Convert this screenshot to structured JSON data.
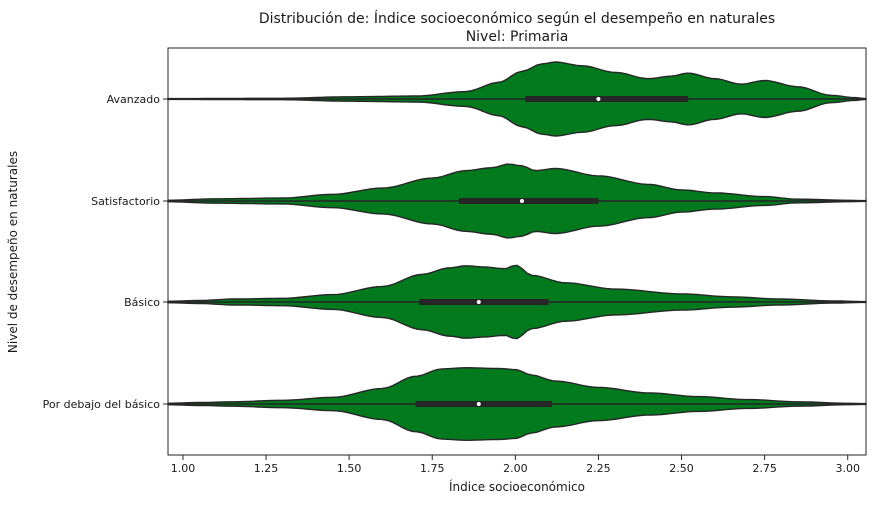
{
  "chart_data": {
    "type": "violin",
    "title": "Distribución de: Índice socioeconómico según el desempeño en naturales",
    "subtitle": "Nivel: Primaria",
    "xlabel": "Índice socioeconómico",
    "ylabel": "Nivel de desempeño en naturales",
    "xlim": [
      0.955,
      3.055
    ],
    "x_ticks": [
      1.0,
      1.25,
      1.5,
      1.75,
      2.0,
      2.25,
      2.5,
      2.75,
      3.0
    ],
    "x_tick_labels": [
      "1.00",
      "1.25",
      "1.50",
      "1.75",
      "2.00",
      "2.25",
      "2.50",
      "2.75",
      "3.00"
    ],
    "grid": false,
    "fill_color": "#007a1c",
    "edge_color": "#262626",
    "categories": [
      "Avanzado",
      "Satisfactorio",
      "Básico",
      "Por debajo del básico"
    ],
    "series": [
      {
        "category": "Avanzado",
        "min": 0.955,
        "q1": 2.03,
        "median": 2.25,
        "q3": 2.52,
        "max": 3.055,
        "density_profile": [
          [
            0.955,
            0.01
          ],
          [
            1.3,
            0.02
          ],
          [
            1.5,
            0.06
          ],
          [
            1.7,
            0.08
          ],
          [
            1.85,
            0.2
          ],
          [
            1.95,
            0.45
          ],
          [
            2.02,
            0.75
          ],
          [
            2.08,
            0.95
          ],
          [
            2.12,
            1.0
          ],
          [
            2.2,
            0.9
          ],
          [
            2.3,
            0.72
          ],
          [
            2.4,
            0.55
          ],
          [
            2.47,
            0.62
          ],
          [
            2.52,
            0.7
          ],
          [
            2.6,
            0.55
          ],
          [
            2.68,
            0.4
          ],
          [
            2.75,
            0.5
          ],
          [
            2.85,
            0.33
          ],
          [
            2.95,
            0.1
          ],
          [
            3.02,
            0.04
          ],
          [
            3.055,
            0.01
          ]
        ]
      },
      {
        "category": "Satisfactorio",
        "min": 0.955,
        "q1": 1.83,
        "median": 2.02,
        "q3": 2.25,
        "max": 3.055,
        "density_profile": [
          [
            0.955,
            0.02
          ],
          [
            1.1,
            0.06
          ],
          [
            1.3,
            0.08
          ],
          [
            1.45,
            0.18
          ],
          [
            1.6,
            0.35
          ],
          [
            1.75,
            0.62
          ],
          [
            1.85,
            0.82
          ],
          [
            1.93,
            0.9
          ],
          [
            1.98,
            1.0
          ],
          [
            2.02,
            0.95
          ],
          [
            2.06,
            0.82
          ],
          [
            2.12,
            0.88
          ],
          [
            2.25,
            0.68
          ],
          [
            2.4,
            0.45
          ],
          [
            2.5,
            0.3
          ],
          [
            2.6,
            0.22
          ],
          [
            2.75,
            0.12
          ],
          [
            2.85,
            0.05
          ],
          [
            3.0,
            0.02
          ],
          [
            3.055,
            0.01
          ]
        ]
      },
      {
        "category": "Básico",
        "min": 0.955,
        "q1": 1.71,
        "median": 1.89,
        "q3": 2.1,
        "max": 3.055,
        "density_profile": [
          [
            0.955,
            0.02
          ],
          [
            1.05,
            0.04
          ],
          [
            1.15,
            0.08
          ],
          [
            1.3,
            0.1
          ],
          [
            1.45,
            0.2
          ],
          [
            1.6,
            0.42
          ],
          [
            1.72,
            0.75
          ],
          [
            1.8,
            0.92
          ],
          [
            1.85,
            0.98
          ],
          [
            1.9,
            0.95
          ],
          [
            1.97,
            0.9
          ],
          [
            2.0,
            1.0
          ],
          [
            2.05,
            0.72
          ],
          [
            2.15,
            0.52
          ],
          [
            2.3,
            0.35
          ],
          [
            2.5,
            0.22
          ],
          [
            2.65,
            0.14
          ],
          [
            2.8,
            0.08
          ],
          [
            2.95,
            0.03
          ],
          [
            3.055,
            0.01
          ]
        ]
      },
      {
        "category": "Por debajo del básico",
        "min": 0.955,
        "q1": 1.7,
        "median": 1.89,
        "q3": 2.11,
        "max": 3.055,
        "density_profile": [
          [
            0.955,
            0.02
          ],
          [
            1.05,
            0.04
          ],
          [
            1.15,
            0.06
          ],
          [
            1.3,
            0.1
          ],
          [
            1.45,
            0.18
          ],
          [
            1.6,
            0.42
          ],
          [
            1.7,
            0.75
          ],
          [
            1.78,
            0.95
          ],
          [
            1.85,
            0.98
          ],
          [
            1.95,
            0.96
          ],
          [
            2.0,
            0.93
          ],
          [
            2.05,
            0.78
          ],
          [
            2.12,
            0.62
          ],
          [
            2.25,
            0.45
          ],
          [
            2.4,
            0.3
          ],
          [
            2.55,
            0.2
          ],
          [
            2.7,
            0.12
          ],
          [
            2.85,
            0.06
          ],
          [
            3.0,
            0.02
          ],
          [
            3.055,
            0.01
          ]
        ]
      }
    ]
  }
}
